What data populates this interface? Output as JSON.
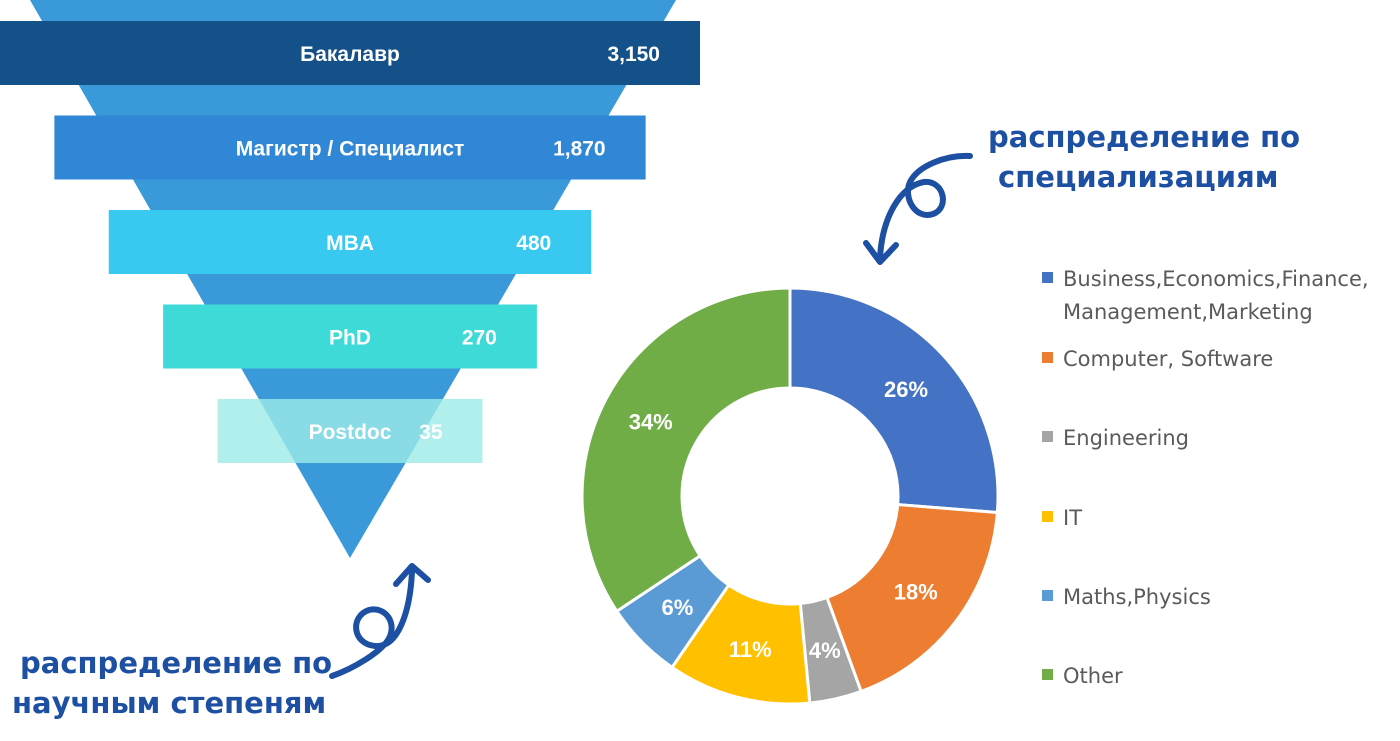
{
  "funnel": {
    "chart_data": {
      "type": "bar",
      "categories": [
        "Бакалавр",
        "Магистр / Специалист",
        "MBA",
        "PhD",
        "Postdoc"
      ],
      "values": [
        3150,
        1870,
        480,
        270,
        35
      ],
      "value_labels": [
        "3,150",
        "1,870",
        "480",
        "270",
        "35"
      ],
      "colors": [
        "#155189",
        "#2f87d6",
        "#38c8f0",
        "#3ddad7",
        "#9eebe8"
      ],
      "funnel_color": "#3a9ad9"
    }
  },
  "donut": {
    "chart_data": {
      "type": "pie",
      "labels": [
        "Business,Economics,Finance, Management,Marketing",
        "Computer, Software",
        "Engineering",
        "IT",
        "Maths,Physics",
        "Other"
      ],
      "values": [
        26,
        18,
        4,
        11,
        6,
        34
      ],
      "value_labels": [
        "26%",
        "18%",
        "4%",
        "11%",
        "6%",
        "34%"
      ],
      "colors": [
        "#4472c4",
        "#ed7d31",
        "#a5a5a5",
        "#ffc000",
        "#5b9bd5",
        "#70ad47"
      ],
      "legend_position": "right"
    }
  },
  "captions": {
    "degrees": [
      "распределение по",
      "научным степеням"
    ],
    "specializations": [
      "распределение по",
      "специализациям"
    ]
  },
  "accent_color": "#1d4fa3"
}
